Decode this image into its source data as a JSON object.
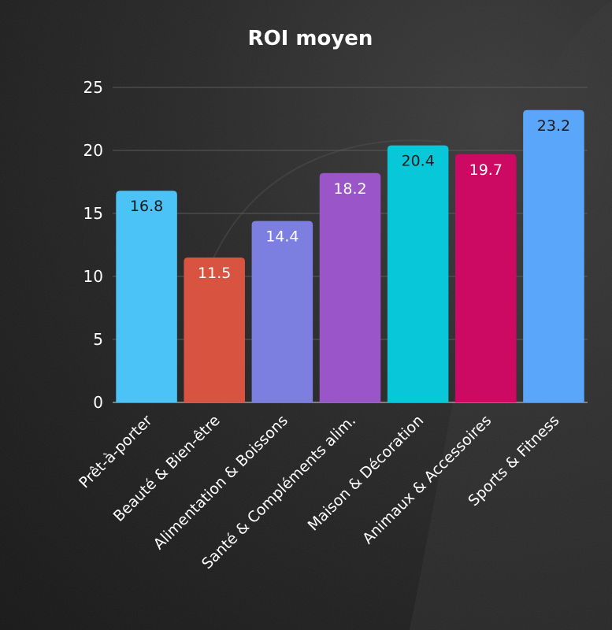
{
  "chart_data": {
    "type": "bar",
    "title": "ROI moyen",
    "xlabel": "",
    "ylabel": "",
    "ylim": [
      0,
      25
    ],
    "yticks": [
      0,
      5,
      10,
      15,
      20,
      25
    ],
    "grid": true,
    "legend": "none",
    "categories": [
      "Prêt-à-porter",
      "Beauté & Bien-être",
      "Alimentation & Boissons",
      "Santé & Compléments alim.",
      "Maison & Décoration",
      "Animaux & Accessoires",
      "Sports & Fitness"
    ],
    "values": [
      16.8,
      11.5,
      14.4,
      18.2,
      20.4,
      19.7,
      23.2
    ],
    "value_labels": [
      "16.8",
      "11.5",
      "14.4",
      "18.2",
      "20.4",
      "19.7",
      "23.2"
    ],
    "colors": [
      "#4cc3f7",
      "#d85441",
      "#7d7fe0",
      "#9a55c8",
      "#08c7d9",
      "#cc0a63",
      "#5aa6fb"
    ],
    "label_colors": [
      "#1a1a1a",
      "#ffffff",
      "#ffffff",
      "#ffffff",
      "#1a1a1a",
      "#ffffff",
      "#1a1a1a"
    ]
  }
}
